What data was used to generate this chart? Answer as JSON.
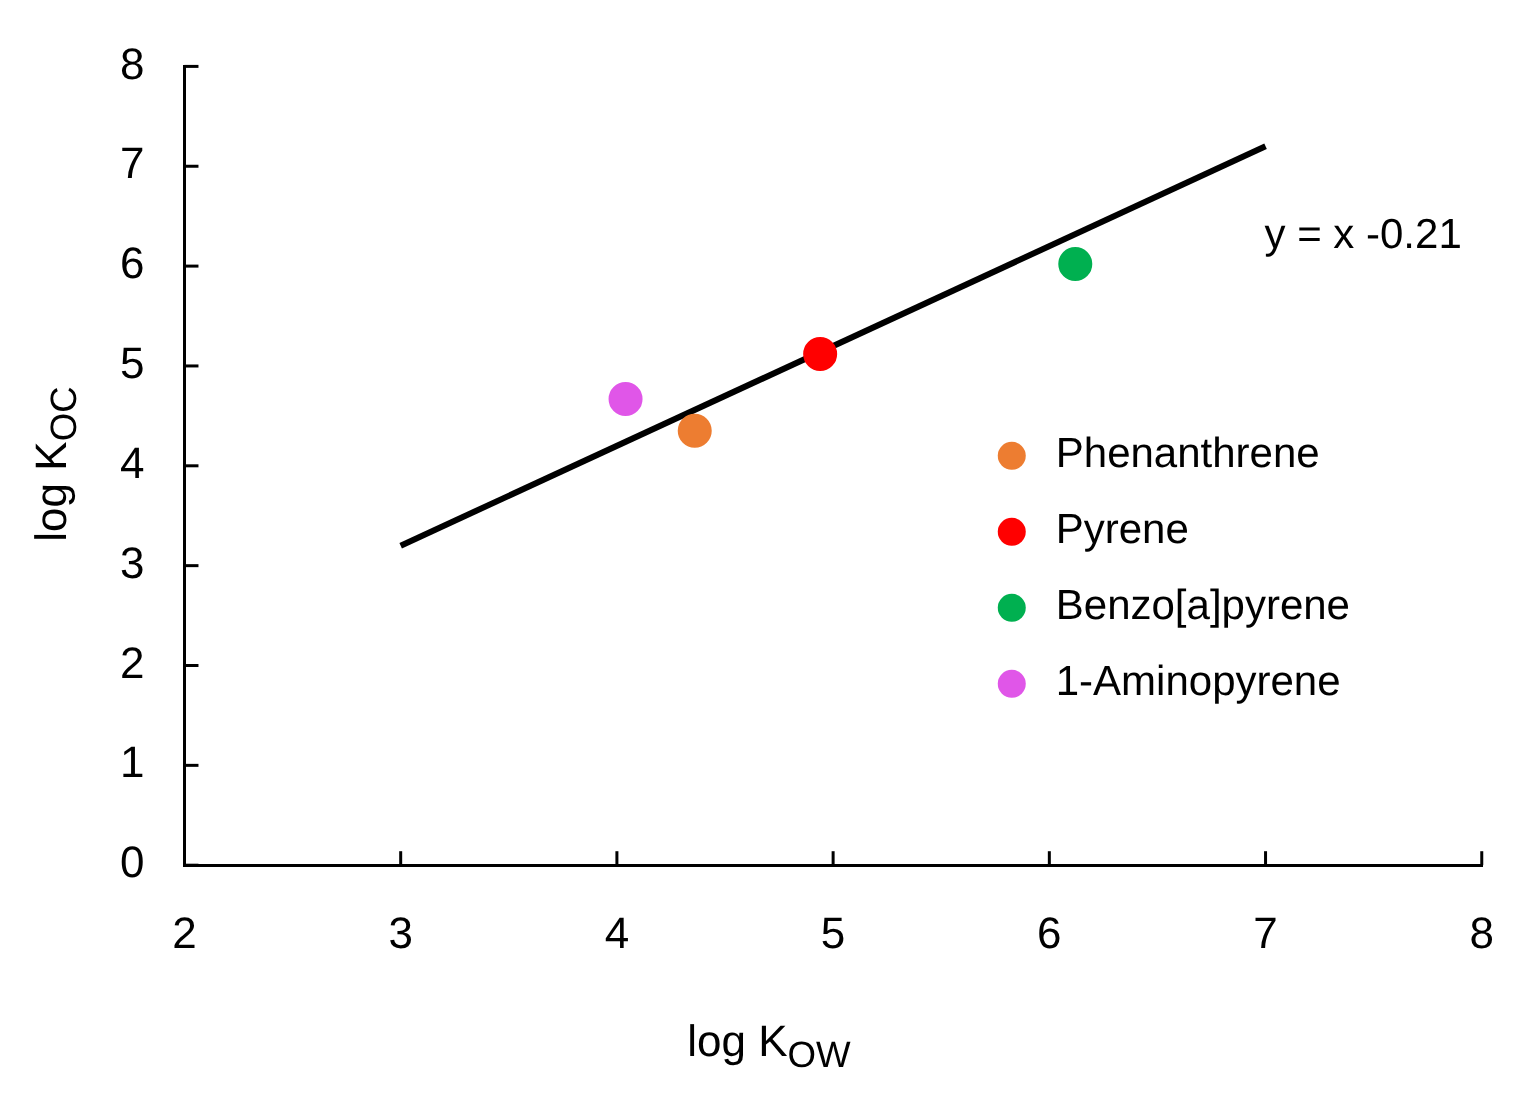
{
  "chart_data": {
    "type": "scatter",
    "xlabel": "log K$_{OW}$",
    "ylabel": "log K$_{OC}$",
    "annotations": [
      "y = x -0.21"
    ],
    "xlim": [
      2,
      8
    ],
    "xticks": [
      2,
      3,
      4,
      5,
      6,
      7,
      8
    ],
    "ylim": [
      0,
      8
    ],
    "yticks": [
      0,
      1,
      2,
      3,
      4,
      5,
      6,
      7,
      8
    ],
    "grid": false,
    "legend": "right",
    "series": [
      {
        "name": "Phenanthrene",
        "color": "#ed7d31",
        "marker": "circle",
        "x": [
          4.36
        ],
        "values": [
          4.35
        ]
      },
      {
        "name": "Pyrene",
        "color": "#ff0000",
        "marker": "circle",
        "x": [
          4.94
        ],
        "values": [
          5.12
        ]
      },
      {
        "name": "Benzo[a]pyrene",
        "color": "#00b050",
        "marker": "circle",
        "x": [
          6.12
        ],
        "values": [
          6.02
        ]
      },
      {
        "name": "1-Aminopyrene",
        "color": "#e056e8",
        "marker": "circle",
        "x": [
          4.04
        ],
        "values": [
          4.67
        ]
      },
      {
        "type": "line",
        "color": "#000000",
        "marker": "none",
        "x": [
          3,
          7
        ],
        "values": [
          3.2,
          7.2
        ]
      }
    ]
  }
}
